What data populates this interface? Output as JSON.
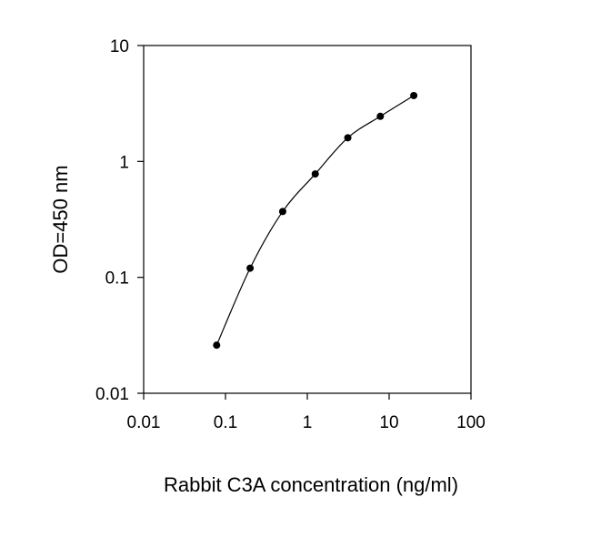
{
  "chart_data": {
    "type": "line",
    "title": "",
    "xlabel": "Rabbit C3A concentration (ng/ml)",
    "ylabel": "OD=450 nm",
    "xscale": "log",
    "yscale": "log",
    "xlim": [
      0.01,
      100
    ],
    "ylim": [
      0.01,
      10
    ],
    "x_ticks": [
      0.01,
      0.1,
      1,
      10,
      100
    ],
    "x_tick_labels": [
      "0.01",
      "0.1",
      "1",
      "10",
      "100"
    ],
    "y_ticks": [
      0.01,
      0.1,
      1,
      10
    ],
    "y_tick_labels": [
      "0.01",
      "0.1",
      "1",
      "10"
    ],
    "grid": false,
    "legend": "none",
    "series": [
      {
        "color": "#000000",
        "marker": "circle",
        "points": [
          {
            "x": 0.078,
            "y": 0.026
          },
          {
            "x": 0.2,
            "y": 0.12
          },
          {
            "x": 0.5,
            "y": 0.37
          },
          {
            "x": 1.25,
            "y": 0.78
          },
          {
            "x": 3.125,
            "y": 1.6
          },
          {
            "x": 7.8,
            "y": 2.45
          },
          {
            "x": 20,
            "y": 3.7
          }
        ]
      }
    ]
  }
}
